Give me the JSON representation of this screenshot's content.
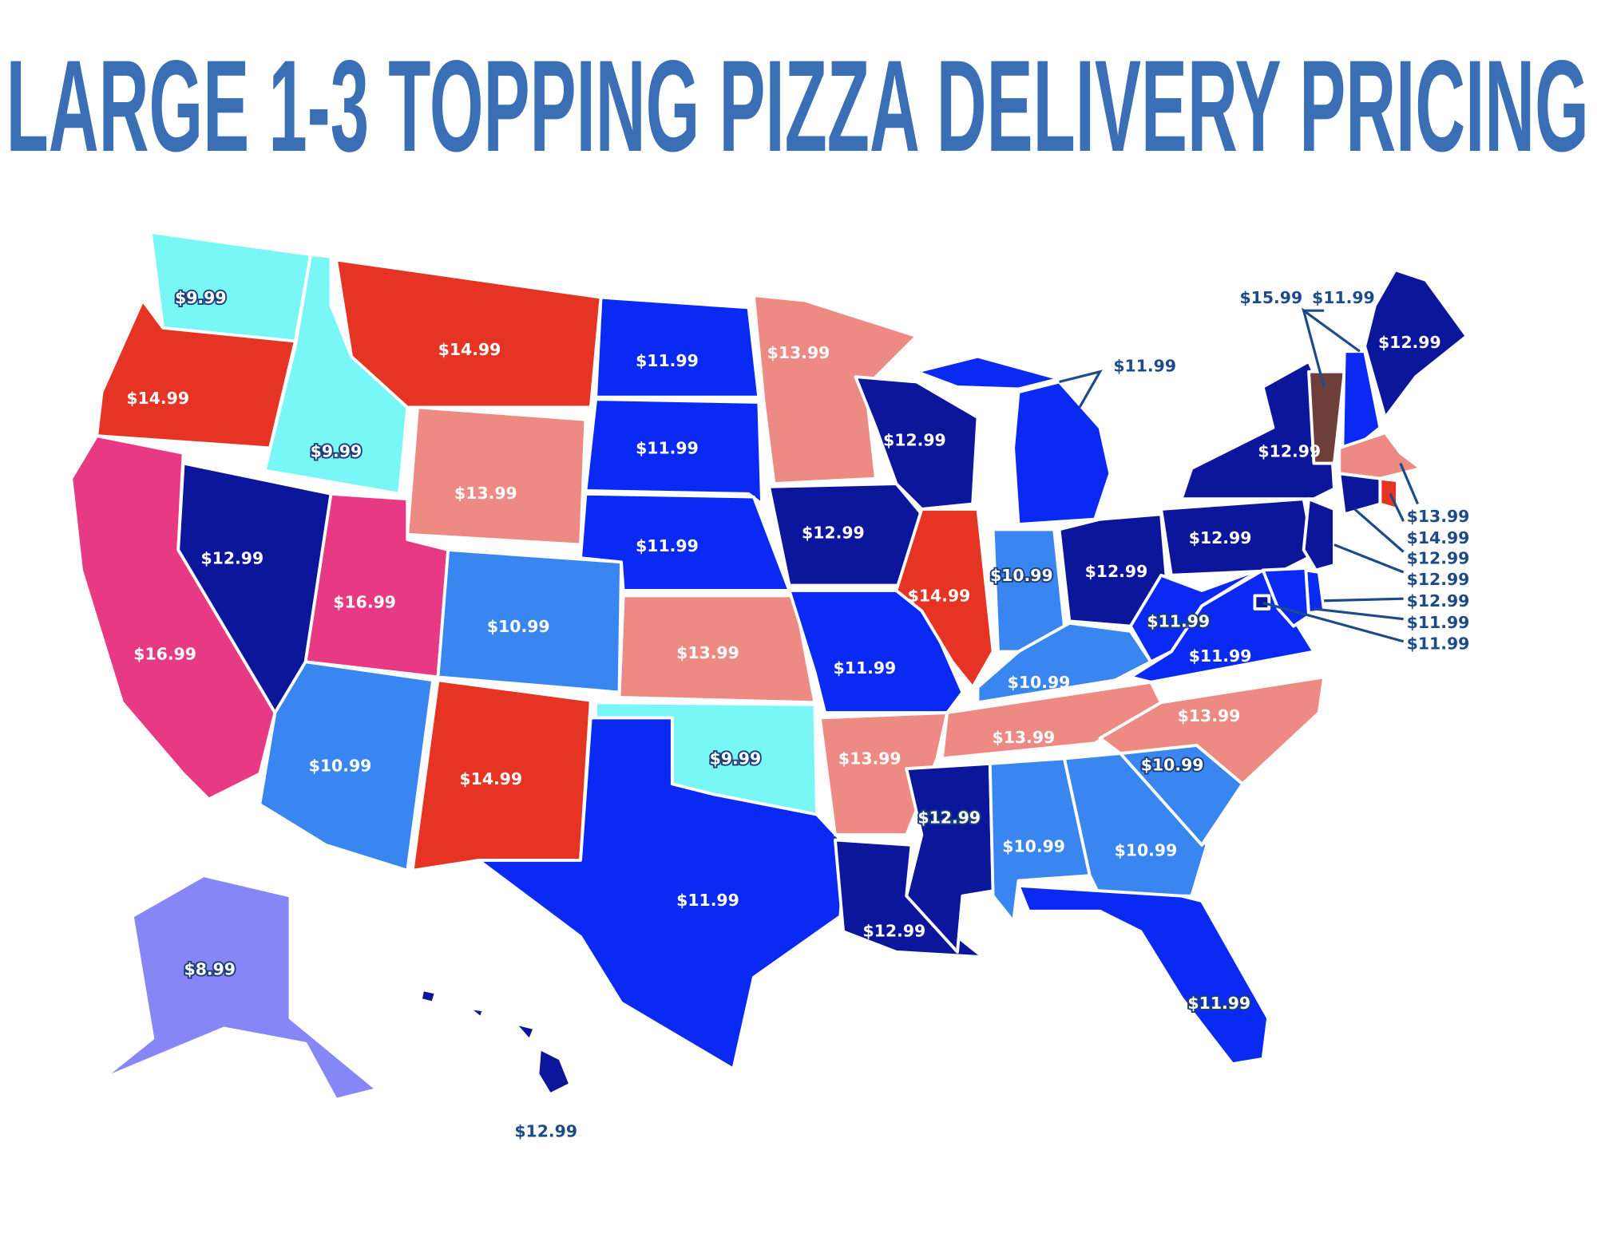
{
  "title": "LARGE 1-3 TOPPING PIZZA DELIVERY PRICING",
  "labels": [
    "$9.99",
    "$14.99",
    "$16.99",
    "$9.99",
    "$12.99",
    "$14.99",
    "$13.99",
    "$16.99",
    "$10.99",
    "$10.99",
    "$14.99",
    "$11.99",
    "$11.99",
    "$11.99",
    "$13.99",
    "$9.99",
    "$11.99",
    "$13.99",
    "$12.99",
    "$11.99",
    "$13.99",
    "$12.99",
    "$12.99",
    "$14.99",
    "$11.99",
    "$10.99",
    "$12.99",
    "$10.99",
    "$13.99",
    "$12.99",
    "$10.99",
    "$10.99",
    "$11.99",
    "$10.99",
    "$13.99",
    "$11.99",
    "$11.99",
    "$12.99",
    "$12.99",
    "$12.99",
    "$15.99",
    "$11.99",
    "$13.99",
    "$14.99",
    "$12.99",
    "$12.99",
    "$12.99",
    "$11.99",
    "$11.99",
    "$8.99",
    "$12.99"
  ]
}
